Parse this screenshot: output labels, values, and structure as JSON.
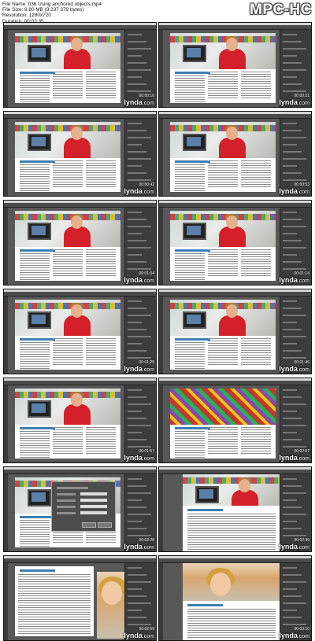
{
  "header": {
    "file_name": "File Name: 036 Using anchored objects.mp4",
    "file_size": "File Size: 8,80 MB (9 237 379 bytes)",
    "resolution": "Resolution: 1280x720",
    "duration": "Duration: 00:03:35",
    "brand": "MPC-HC"
  },
  "watermark": {
    "main": "lynda",
    "suffix": ".com"
  },
  "thumbnails": [
    {
      "timestamp": "00:00:10",
      "variant": "standard"
    },
    {
      "timestamp": "00:00:21",
      "variant": "standard"
    },
    {
      "timestamp": "00:00:42",
      "variant": "standard"
    },
    {
      "timestamp": "00:00:53",
      "variant": "standard"
    },
    {
      "timestamp": "00:01:04",
      "variant": "standard"
    },
    {
      "timestamp": "00:01:14",
      "variant": "standard"
    },
    {
      "timestamp": "00:01:25",
      "variant": "standard"
    },
    {
      "timestamp": "00:01:46",
      "variant": "standard"
    },
    {
      "timestamp": "00:01:57",
      "variant": "standard"
    },
    {
      "timestamp": "00:02:07",
      "variant": "market"
    },
    {
      "timestamp": "00:02:28",
      "variant": "dialog"
    },
    {
      "timestamp": "00:02:39",
      "variant": "textlayout"
    },
    {
      "timestamp": "00:02:59",
      "variant": "woman-text"
    },
    {
      "timestamp": "00:03:10",
      "variant": "woman-large"
    }
  ]
}
